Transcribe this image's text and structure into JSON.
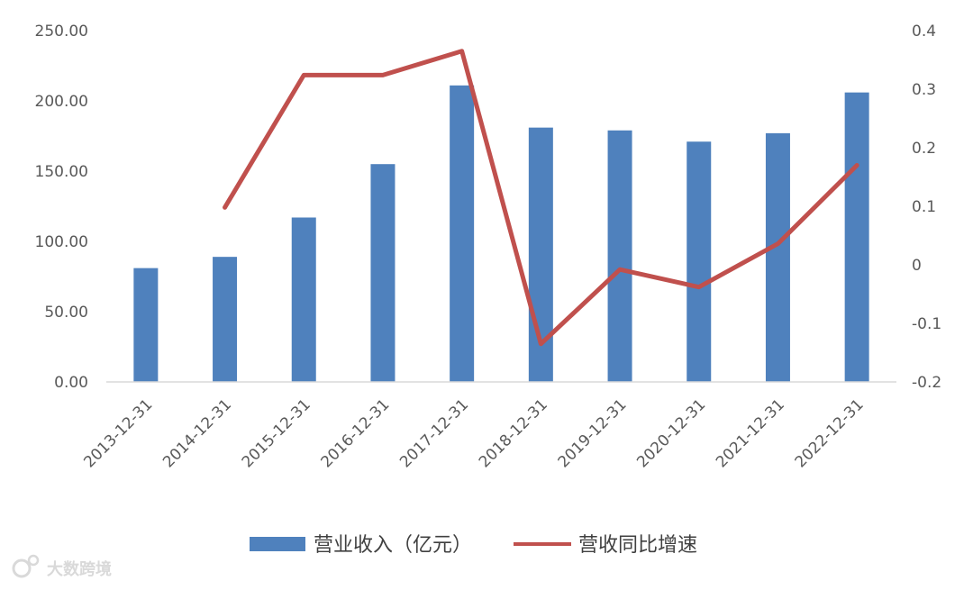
{
  "chart_data": {
    "type": "bar",
    "categories": [
      "2013-12-31",
      "2014-12-31",
      "2015-12-31",
      "2016-12-31",
      "2017-12-31",
      "2018-12-31",
      "2019-12-31",
      "2020-12-31",
      "2021-12-31",
      "2022-12-31"
    ],
    "series": [
      {
        "name": "营业收入（亿元）",
        "type": "bar",
        "axis": "left",
        "color": "#4f81bd",
        "values": [
          81.0,
          89.0,
          117.0,
          155.0,
          211.0,
          181.0,
          179.0,
          171.0,
          177.0,
          206.0
        ]
      },
      {
        "name": "营收同比增速",
        "type": "line",
        "axis": "right",
        "color": "#c0504d",
        "values": [
          null,
          0.098,
          0.324,
          0.324,
          0.365,
          -0.135,
          -0.008,
          -0.038,
          0.036,
          0.17
        ]
      }
    ],
    "y_left": {
      "ylim": [
        0,
        250
      ],
      "ticks": [
        "0.00",
        "50.00",
        "100.00",
        "150.00",
        "200.00",
        "250.00"
      ]
    },
    "y_right": {
      "ylim": [
        -0.2,
        0.4
      ],
      "ticks": [
        "-0.2",
        "-0.1",
        "0",
        "0.1",
        "0.2",
        "0.3",
        "0.4"
      ]
    },
    "legend_placement": "bottom",
    "grid": false
  },
  "watermark": {
    "text": "大数跨境",
    "icon": "weibo-logo-icon"
  }
}
